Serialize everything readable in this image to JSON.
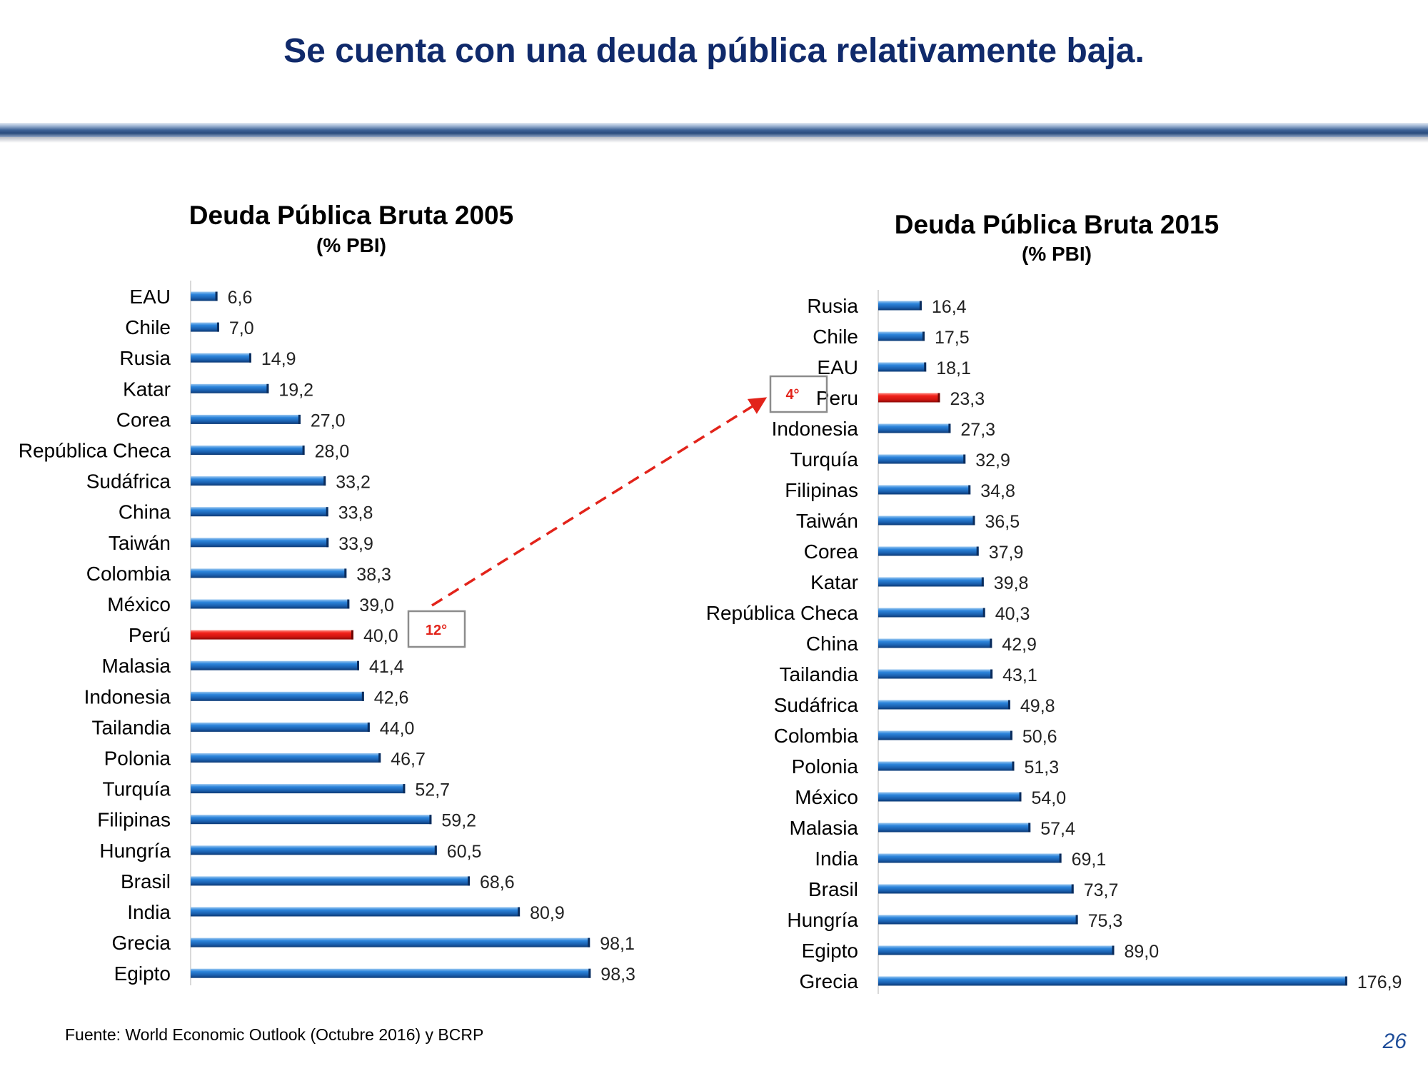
{
  "slide": {
    "title": "Se cuenta con una deuda pública relativamente baja.",
    "source": "Fuente: World Economic Outlook (Octubre 2016) y BCRP",
    "page_number": "26"
  },
  "colors": {
    "title": "#102a6b",
    "bar": "#1f6fc4",
    "highlight_bar": "#e2231a",
    "arrow": "#e2231a",
    "page_number": "#1f4e9a"
  },
  "chart_data": [
    {
      "type": "bar",
      "orientation": "horizontal",
      "title": "Deuda Pública Bruta 2005",
      "subtitle": "(% PBI)",
      "categories": [
        "EAU",
        "Chile",
        "Rusia",
        "Katar",
        "Corea",
        "República Checa",
        "Sudáfrica",
        "China",
        "Taiwán",
        "Colombia",
        "México",
        "Perú",
        "Malasia",
        "Indonesia",
        "Tailandia",
        "Polonia",
        "Turquía",
        "Filipinas",
        "Hungría",
        "Brasil",
        "India",
        "Grecia",
        "Egipto"
      ],
      "values": [
        6.6,
        7.0,
        14.9,
        19.2,
        27.0,
        28.0,
        33.2,
        33.8,
        33.9,
        38.3,
        39.0,
        40.0,
        41.4,
        42.6,
        44.0,
        46.7,
        52.7,
        59.2,
        60.5,
        68.6,
        80.9,
        98.1,
        98.3
      ],
      "value_labels": [
        "6,6",
        "7,0",
        "14,9",
        "19,2",
        "27,0",
        "28,0",
        "33,2",
        "33,8",
        "33,9",
        "38,3",
        "39,0",
        "40,0",
        "41,4",
        "42,6",
        "44,0",
        "46,7",
        "52,7",
        "59,2",
        "60,5",
        "68,6",
        "80,9",
        "98,1",
        "98,3"
      ],
      "highlight": "Perú",
      "rank_label": "12°",
      "xlim": [
        0,
        100
      ],
      "grid": false,
      "legend": "none"
    },
    {
      "type": "bar",
      "orientation": "horizontal",
      "title": "Deuda Pública Bruta 2015",
      "subtitle": "(% PBI)",
      "categories": [
        "Rusia",
        "Chile",
        "EAU",
        "Peru",
        "Indonesia",
        "Turquía",
        "Filipinas",
        "Taiwán",
        "Corea",
        "Katar",
        "República Checa",
        "China",
        "Tailandia",
        "Sudáfrica",
        "Colombia",
        "Polonia",
        "México",
        "Malasia",
        "India",
        "Brasil",
        "Hungría",
        "Egipto",
        "Grecia"
      ],
      "values": [
        16.4,
        17.5,
        18.1,
        23.3,
        27.3,
        32.9,
        34.8,
        36.5,
        37.9,
        39.8,
        40.3,
        42.9,
        43.1,
        49.8,
        50.6,
        51.3,
        54.0,
        57.4,
        69.1,
        73.7,
        75.3,
        89.0,
        176.9
      ],
      "value_labels": [
        "16,4",
        "17,5",
        "18,1",
        "23,3",
        "27,3",
        "32,9",
        "34,8",
        "36,5",
        "37,9",
        "39,8",
        "40,3",
        "42,9",
        "43,1",
        "49,8",
        "50,6",
        "51,3",
        "54,0",
        "57,4",
        "69,1",
        "73,7",
        "75,3",
        "89,0",
        "176,9"
      ],
      "highlight": "Peru",
      "rank_label": "4°",
      "xlim": [
        0,
        178
      ],
      "grid": false,
      "legend": "none"
    }
  ]
}
